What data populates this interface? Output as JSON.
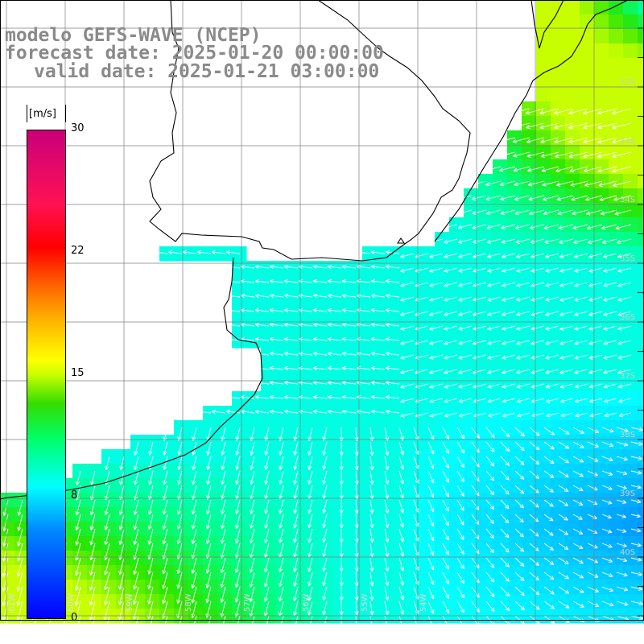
{
  "title": {
    "line1": "modelo GEFS-WAVE (NCEP)",
    "line2": "forecast date: 2025-01-20 00:00:00",
    "line3": "valid date: 2025-01-21 03:00:00"
  },
  "colorbar": {
    "unit": "[m/s]",
    "ticks": [
      "30",
      "22",
      "15",
      "8",
      "0"
    ],
    "tick_values": [
      30,
      22,
      15,
      8,
      0
    ],
    "vmin": 0,
    "vmax": 30,
    "colors": [
      "#0000ff",
      "#0088ff",
      "#00ffff",
      "#00ff66",
      "#33dd00",
      "#ccff00",
      "#ffff00",
      "#ffaa00",
      "#ff6600",
      "#ff0000",
      "#ff1155",
      "#c9007a"
    ]
  },
  "lat_labels": [
    "32S",
    "33S",
    "34S",
    "35S",
    "36S",
    "37S",
    "38S",
    "39S",
    "40S"
  ],
  "lat_values": [
    -32,
    -33,
    -34,
    -35,
    -36,
    -37,
    -38,
    -39,
    -40
  ],
  "lon_labels": [
    "61W",
    "60W",
    "59W",
    "58W",
    "57W",
    "56W",
    "55W",
    "54W"
  ],
  "lon_values": [
    -61,
    -60,
    -59,
    -58,
    -57,
    -56,
    -55,
    -54
  ],
  "colors": {
    "land": "#ffffff",
    "grid": "#7f7f7f",
    "coast": "#000000",
    "arrow": "#ffffff"
  }
}
